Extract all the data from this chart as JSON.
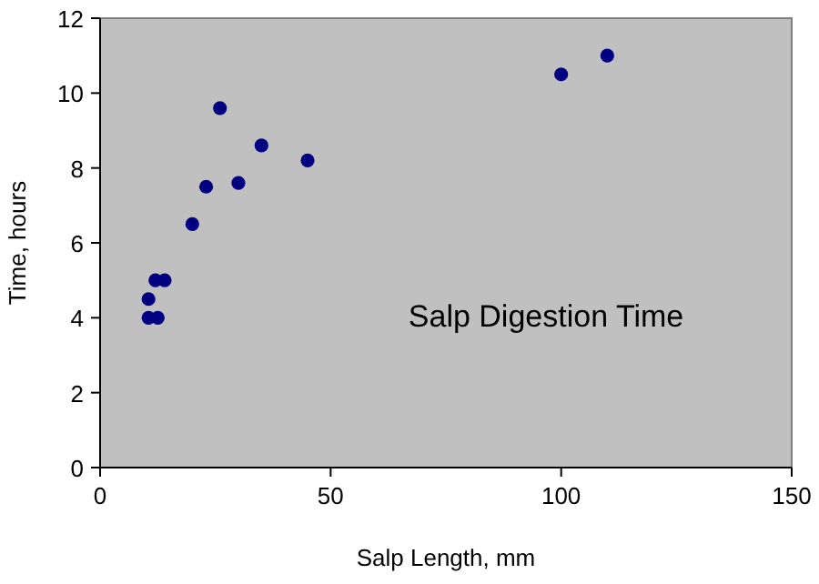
{
  "chart_data": {
    "type": "scatter",
    "title": "Salp Digestion Time",
    "xlabel": "Salp Length, mm",
    "ylabel": "Time, hours",
    "x": [
      10.5,
      10.5,
      12.5,
      12,
      14,
      20,
      23,
      26,
      30,
      35,
      45,
      100,
      110
    ],
    "values": [
      4.5,
      4,
      4,
      5,
      5,
      6.5,
      7.5,
      9.6,
      7.6,
      8.6,
      8.2,
      10.5,
      11
    ],
    "color": "#000080",
    "marker": "circle",
    "grid": false,
    "xlim": [
      0,
      150
    ],
    "xticks": [
      0,
      50,
      100,
      150
    ],
    "ylim": [
      0,
      12
    ],
    "yticks": [
      0,
      2,
      4,
      6,
      8,
      10,
      12
    ]
  }
}
